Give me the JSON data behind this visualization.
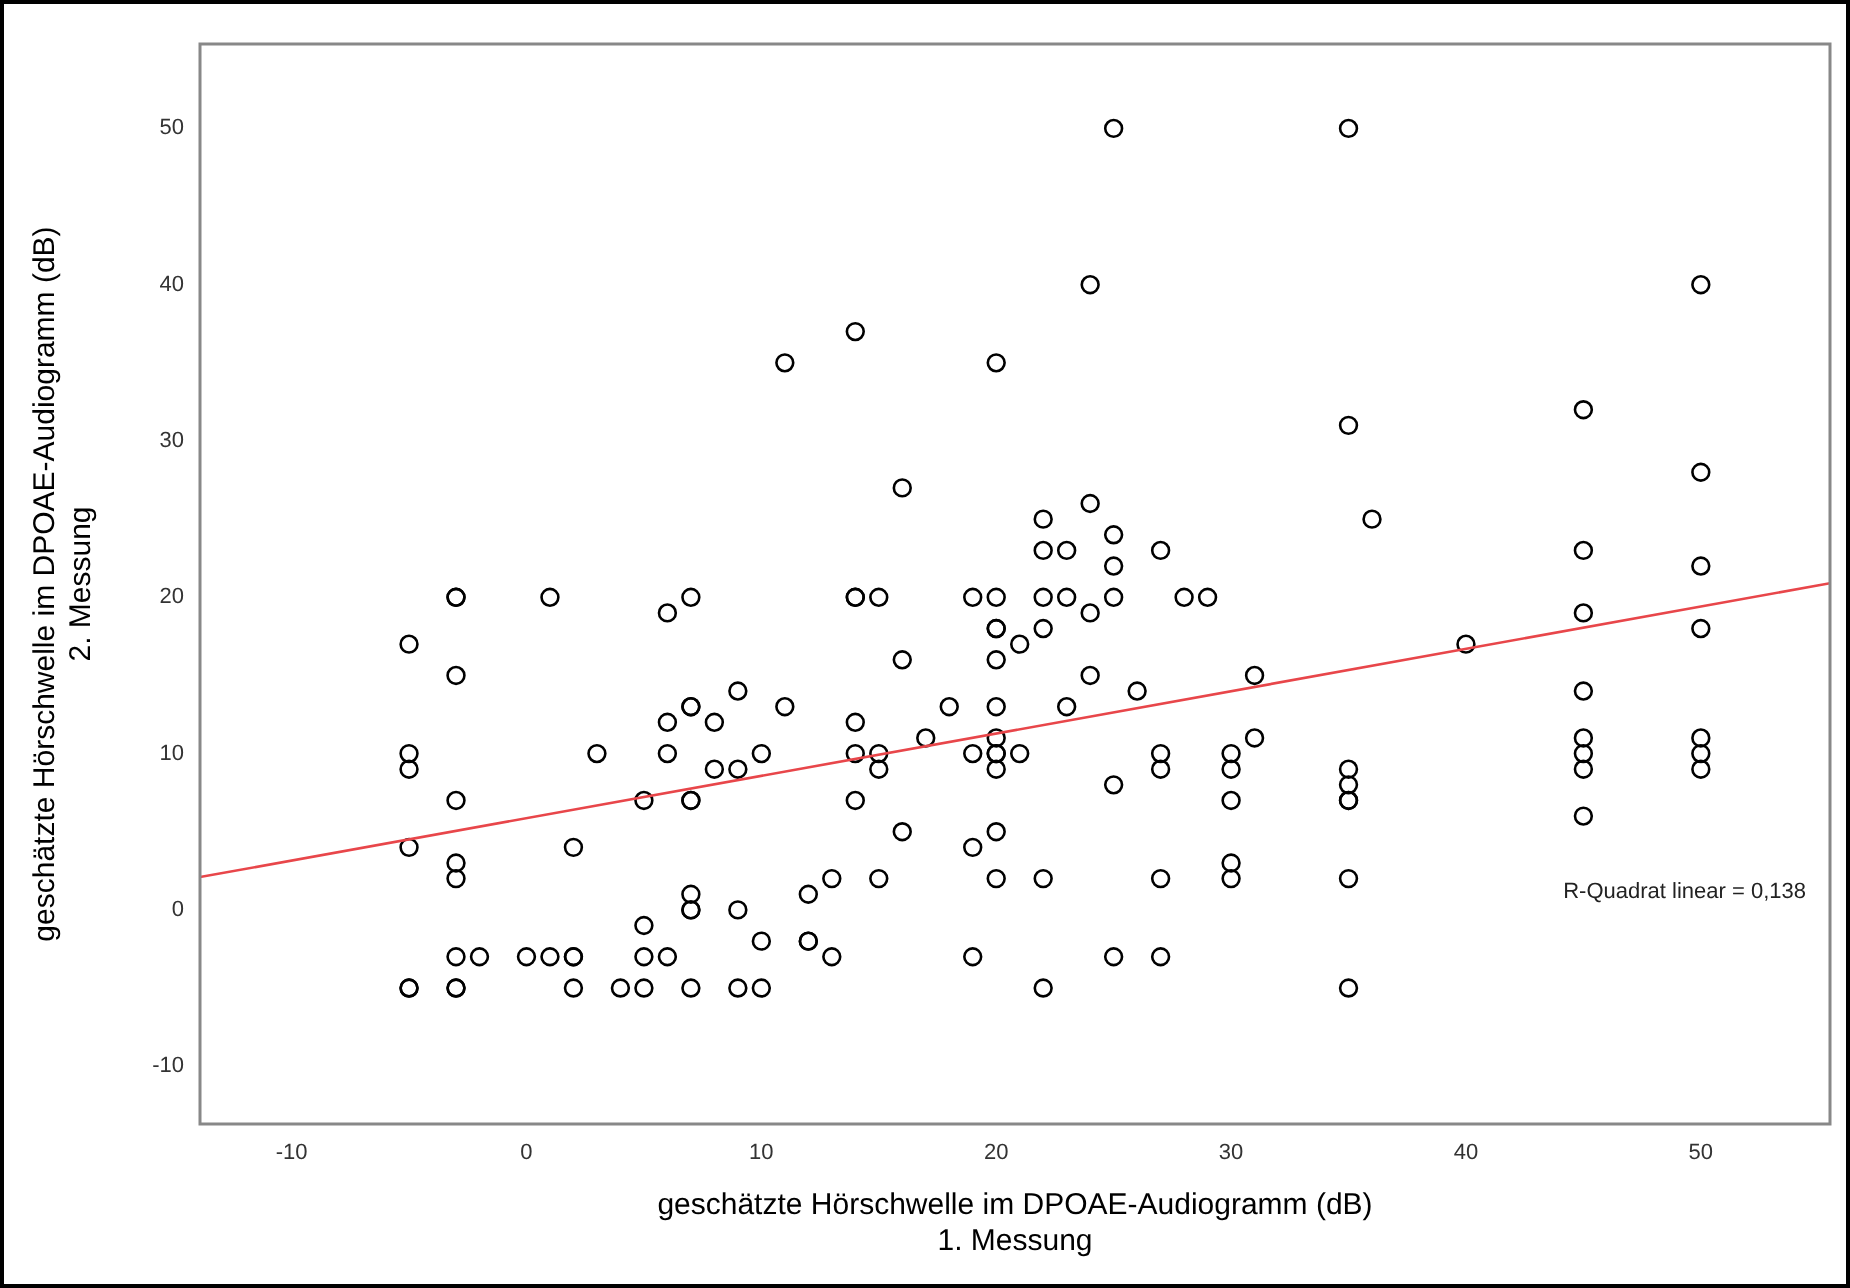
{
  "chart_data": {
    "type": "scatter",
    "xlabel": "geschätzte Hörschwelle im DPOAE-Audiogramm (dB)\n1. Messung",
    "ylabel": "geschätzte Hörschwelle im DPOAE-Audiogramm (dB)\n2. Messung",
    "xlim": [
      -13.9,
      55.5
    ],
    "ylim": [
      -13.7,
      55.4
    ],
    "xticks": [
      -10,
      0,
      10,
      20,
      30,
      40,
      50
    ],
    "yticks": [
      -10,
      0,
      10,
      20,
      30,
      40,
      50
    ],
    "grid": false,
    "legend": false,
    "annotations": [
      "R-Quadrat linear = 0,138"
    ],
    "series": [
      {
        "marker": "circle",
        "color": "#000000",
        "x": [
          -5,
          -5,
          -5,
          -5,
          -5,
          -5,
          -3,
          -3,
          -3,
          -3,
          -3,
          -3,
          -3,
          -3,
          -3,
          -2,
          0,
          1,
          1,
          2,
          2,
          2,
          2,
          3,
          4,
          5,
          5,
          5,
          5,
          6,
          6,
          6,
          6,
          7,
          7,
          7,
          7,
          7,
          7,
          7,
          7,
          7,
          8,
          8,
          9,
          9,
          9,
          9,
          10,
          10,
          10,
          11,
          11,
          12,
          12,
          12,
          13,
          13,
          14,
          14,
          14,
          14,
          14,
          14,
          15,
          15,
          15,
          15,
          16,
          16,
          16,
          17,
          18,
          19,
          19,
          19,
          19,
          20,
          20,
          20,
          20,
          20,
          20,
          20,
          20,
          20,
          20,
          20,
          20,
          21,
          21,
          22,
          22,
          22,
          22,
          22,
          22,
          23,
          23,
          23,
          24,
          24,
          24,
          24,
          25,
          25,
          25,
          25,
          25,
          25,
          26,
          27,
          27,
          27,
          27,
          27,
          28,
          29,
          30,
          30,
          30,
          30,
          30,
          31,
          31,
          35,
          35,
          35,
          35,
          35,
          35,
          35,
          35,
          36,
          40,
          45,
          45,
          45,
          45,
          45,
          45,
          45,
          45,
          50,
          50,
          50,
          50,
          50,
          50,
          50
        ],
        "values": [
          17,
          10,
          9,
          4,
          -5,
          -5,
          20,
          20,
          15,
          7,
          3,
          2,
          -3,
          -5,
          -5,
          -3,
          -3,
          20,
          -3,
          4,
          -3,
          -3,
          -5,
          10,
          -5,
          7,
          -1,
          -3,
          -5,
          19,
          12,
          10,
          -3,
          20,
          13,
          13,
          7,
          7,
          1,
          0,
          0,
          -5,
          12,
          9,
          14,
          9,
          0,
          -5,
          10,
          -2,
          -5,
          35,
          13,
          1,
          -2,
          -2,
          2,
          -3,
          37,
          20,
          20,
          12,
          10,
          7,
          20,
          10,
          9,
          2,
          27,
          16,
          5,
          11,
          13,
          20,
          10,
          4,
          -3,
          35,
          20,
          18,
          18,
          16,
          13,
          11,
          10,
          10,
          9,
          5,
          2,
          17,
          10,
          25,
          23,
          20,
          18,
          2,
          -5,
          23,
          20,
          13,
          40,
          26,
          19,
          15,
          50,
          24,
          22,
          20,
          8,
          -3,
          14,
          23,
          10,
          9,
          2,
          -3,
          20,
          20,
          10,
          9,
          7,
          3,
          2,
          15,
          11,
          50,
          31,
          9,
          8,
          7,
          7,
          2,
          -5,
          25,
          17,
          32,
          23,
          19,
          14,
          11,
          10,
          9,
          6,
          40,
          28,
          22,
          18,
          11,
          10,
          9
        ]
      },
      {
        "type": "line",
        "marker": "none",
        "color": "#e8464a",
        "x": [
          -13.9,
          55.5
        ],
        "values": [
          2.1,
          20.9
        ]
      }
    ]
  }
}
